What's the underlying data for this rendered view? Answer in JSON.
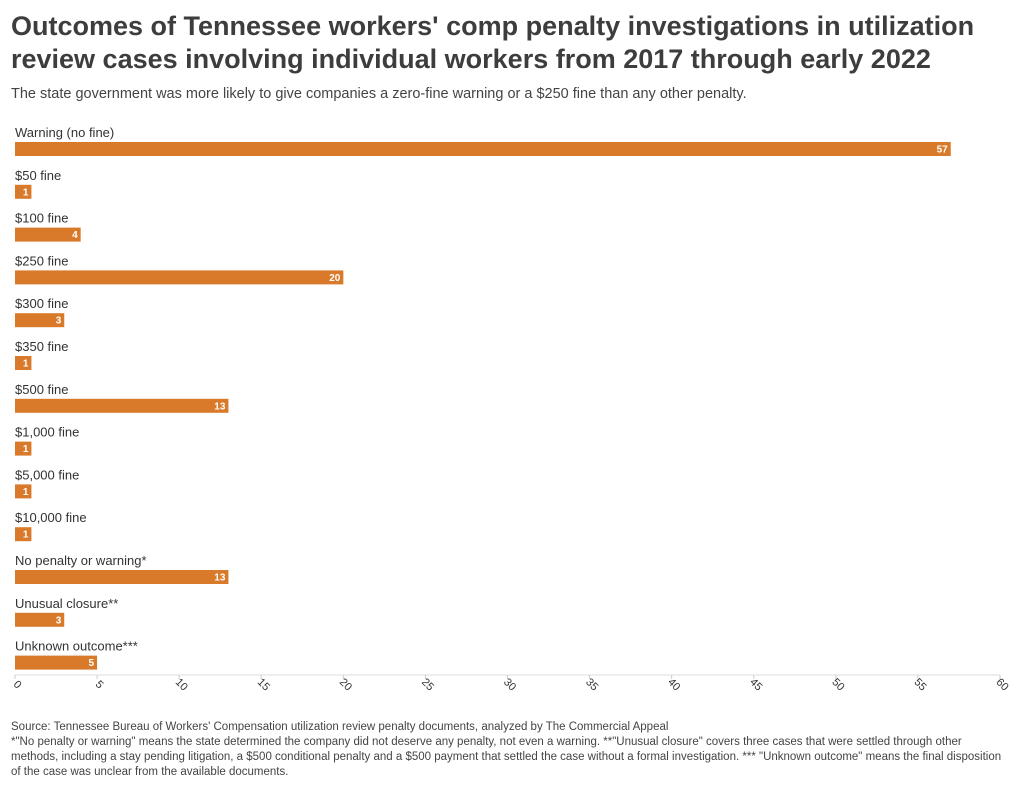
{
  "header": {
    "title": "Outcomes of Tennessee workers' comp penalty investigations in utilization review cases involving individual workers from 2017 through early 2022",
    "subtitle": "The state government was more likely to give companies a zero-fine warning or a $250 fine than any other penalty."
  },
  "chart_data": {
    "type": "bar",
    "orientation": "horizontal",
    "categories": [
      "Warning (no fine)",
      "$50 fine",
      "$100 fine",
      "$250 fine",
      "$300 fine",
      "$350 fine",
      "$500 fine",
      "$1,000 fine",
      "$5,000 fine",
      "$10,000 fine",
      "No penalty or warning*",
      "Unusual closure**",
      "Unknown outcome***"
    ],
    "values": [
      57,
      1,
      4,
      20,
      3,
      1,
      13,
      1,
      1,
      1,
      13,
      3,
      5
    ],
    "xlim": [
      0,
      60
    ],
    "xticks": [
      0,
      5,
      10,
      15,
      20,
      25,
      30,
      35,
      40,
      45,
      50,
      55,
      60
    ],
    "grid": false,
    "bar_color": "#d97a2b"
  },
  "footer": {
    "source": "Source: Tennessee Bureau of Workers' Compensation utilization review penalty documents, analyzed by The Commercial Appeal",
    "notes": "*\"No penalty or warning\" means the state determined the company did not deserve any penalty, not even a warning. **\"Unusual closure\" covers three cases that were settled through other methods, including a stay pending litigation, a $500 conditional penalty and a $500 payment that settled the case without a formal investigation. *** \"Unknown outcome\" means the final disposition of the case was unclear from the available documents."
  }
}
